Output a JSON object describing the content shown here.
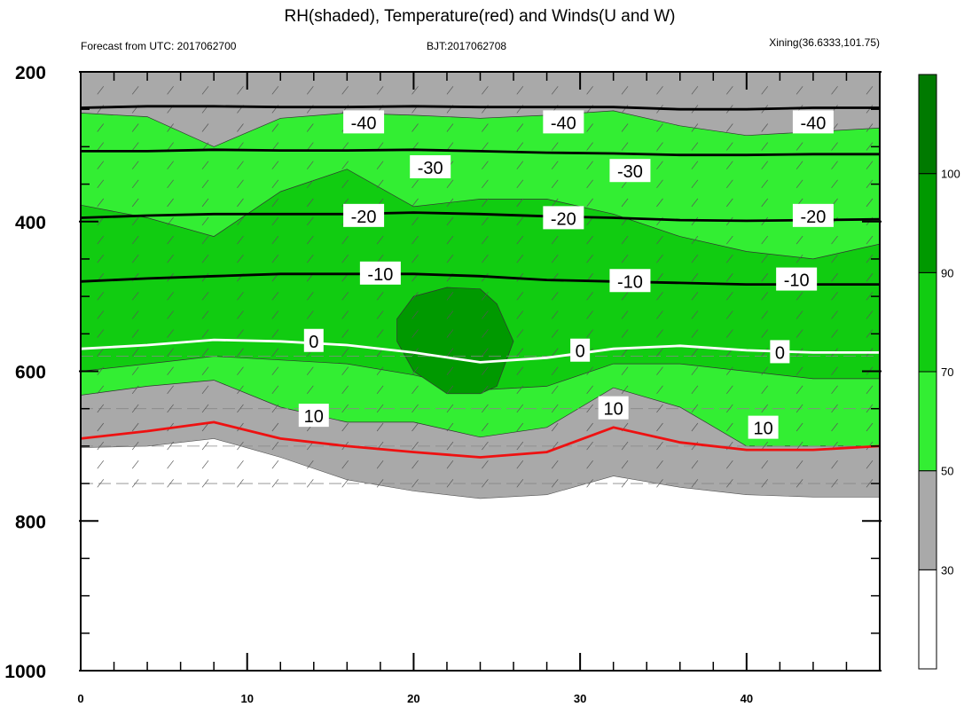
{
  "chart_data": {
    "type": "heatmap",
    "title": "RH(shaded), Temperature(red) and Winds(U and W)",
    "subtitle_left": "Forecast from UTC: 2017062700",
    "subtitle_center": "BJT:2017062708",
    "subtitle_right": "Xining(36.6333,101.75)",
    "xlim": [
      0,
      48
    ],
    "ylim": [
      200,
      1000
    ],
    "y_reversed": true,
    "x_ticks": [
      0,
      10,
      20,
      30,
      40
    ],
    "y_ticks": [
      200,
      400,
      600,
      800,
      1000
    ],
    "colorbar": {
      "levels": [
        30,
        50,
        70,
        90,
        100
      ],
      "colors": [
        "#ffffff",
        "#a9a9a9",
        "#33ee33",
        "#11cc11",
        "#009900",
        "#007a00"
      ]
    },
    "colors": {
      "temperature_below_zero": "#000000",
      "freezing_level": "#ffffff",
      "temperature_above_zero": "#ee1111"
    },
    "temperature_contours": [
      {
        "level": -40,
        "label": "-40",
        "x": [
          0,
          4,
          8,
          12,
          16,
          20,
          24,
          28,
          32,
          36,
          40,
          44,
          48
        ],
        "y": [
          248,
          246,
          246,
          247,
          247,
          246,
          247,
          247,
          247,
          250,
          250,
          248,
          248
        ]
      },
      {
        "level": -30,
        "label": "-30",
        "x": [
          0,
          4,
          8,
          12,
          16,
          20,
          24,
          28,
          32,
          36,
          40,
          44,
          48
        ],
        "y": [
          306,
          306,
          304,
          305,
          305,
          304,
          306,
          308,
          309,
          311,
          311,
          310,
          310
        ]
      },
      {
        "level": -20,
        "label": "-20",
        "x": [
          0,
          4,
          8,
          12,
          16,
          20,
          24,
          28,
          32,
          36,
          40,
          44,
          48
        ],
        "y": [
          395,
          392,
          390,
          390,
          390,
          388,
          390,
          393,
          395,
          398,
          399,
          398,
          397
        ]
      },
      {
        "level": -10,
        "label": "-10",
        "x": [
          0,
          4,
          8,
          12,
          16,
          20,
          24,
          28,
          32,
          36,
          40,
          44,
          48
        ],
        "y": [
          480,
          476,
          473,
          470,
          470,
          470,
          473,
          478,
          480,
          482,
          484,
          484,
          484
        ]
      },
      {
        "level": 0,
        "label": "0",
        "x": [
          0,
          4,
          8,
          12,
          16,
          20,
          24,
          28,
          32,
          36,
          40,
          44,
          48
        ],
        "y": [
          570,
          565,
          558,
          560,
          565,
          575,
          588,
          582,
          570,
          566,
          572,
          575,
          575
        ]
      },
      {
        "level": 10,
        "label": "10",
        "x": [
          0,
          4,
          8,
          12,
          16,
          20,
          24,
          28,
          32,
          36,
          40,
          44,
          48
        ],
        "y": [
          690,
          680,
          668,
          690,
          700,
          708,
          715,
          708,
          675,
          695,
          705,
          705,
          700
        ]
      }
    ],
    "contour_labels": [
      {
        "text": "-40",
        "x": 17,
        "y": 268
      },
      {
        "text": "-40",
        "x": 29,
        "y": 268
      },
      {
        "text": "-40",
        "x": 44,
        "y": 268
      },
      {
        "text": "-30",
        "x": 21,
        "y": 328
      },
      {
        "text": "-30",
        "x": 33,
        "y": 333
      },
      {
        "text": "-20",
        "x": 17,
        "y": 393
      },
      {
        "text": "-20",
        "x": 29,
        "y": 396
      },
      {
        "text": "-20",
        "x": 44,
        "y": 393
      },
      {
        "text": "-10",
        "x": 18,
        "y": 470
      },
      {
        "text": "-10",
        "x": 33,
        "y": 480
      },
      {
        "text": "-10",
        "x": 43,
        "y": 478
      },
      {
        "text": "0",
        "x": 14,
        "y": 560
      },
      {
        "text": "0",
        "x": 30,
        "y": 573
      },
      {
        "text": "0",
        "x": 42,
        "y": 575
      },
      {
        "text": "10",
        "x": 14,
        "y": 660
      },
      {
        "text": "10",
        "x": 32,
        "y": 650
      },
      {
        "text": "10",
        "x": 41,
        "y": 676
      }
    ],
    "surface_pressure": {
      "x": [
        0,
        4,
        8,
        12,
        16,
        20,
        24,
        28,
        32,
        36,
        40,
        44,
        48
      ],
      "y": [
        702,
        700,
        690,
        715,
        745,
        760,
        770,
        765,
        740,
        755,
        765,
        768,
        768
      ]
    },
    "rh_regions": [
      {
        "band": "50-70",
        "x": [
          0,
          4,
          8,
          12,
          16,
          20,
          24,
          28,
          32,
          36,
          40,
          44,
          48
        ],
        "top": [
          255,
          260,
          300,
          262,
          255,
          258,
          262,
          258,
          252,
          272,
          285,
          280,
          275
        ],
        "bottom": [
          632,
          620,
          612,
          648,
          668,
          668,
          688,
          675,
          622,
          648,
          700,
          700,
          700
        ]
      },
      {
        "band": "70-90",
        "x": [
          0,
          4,
          8,
          12,
          16,
          20,
          24,
          28,
          32,
          36,
          40,
          44,
          48
        ],
        "top": [
          378,
          395,
          420,
          360,
          330,
          380,
          370,
          370,
          390,
          420,
          440,
          450,
          430
        ],
        "bottom": [
          600,
          590,
          580,
          585,
          590,
          605,
          625,
          620,
          590,
          590,
          600,
          610,
          610
        ]
      },
      {
        "band": "90-100",
        "x": [
          19,
          20,
          22,
          24,
          25,
          26,
          25,
          24,
          22,
          20,
          19
        ],
        "y": [
          530,
          500,
          488,
          490,
          510,
          560,
          620,
          630,
          630,
          600,
          560
        ]
      }
    ]
  }
}
